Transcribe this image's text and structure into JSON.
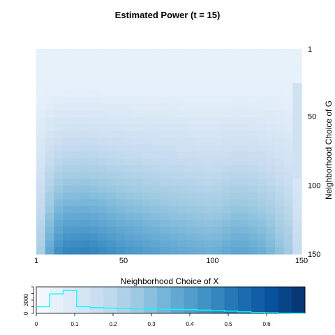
{
  "chart_data": [
    {
      "type": "heatmap",
      "title": "Estimated Power (t = 15)",
      "xlabel": "Neighborhood Choice of X",
      "ylabel": "Neighborhood Choice of G",
      "x_ticks": [
        "1",
        "50",
        "100",
        "150"
      ],
      "x_tick_values": [
        1,
        50,
        100,
        150
      ],
      "y_ticks": [
        "1",
        "50",
        "100",
        "150"
      ],
      "y_tick_values": [
        1,
        50,
        100,
        150
      ],
      "xlim": [
        1,
        150
      ],
      "ylim": [
        1,
        150
      ],
      "y_reversed": true,
      "colormap": "Blues",
      "colors": [
        "#f7fbff",
        "#deebf7",
        "#c6dbef",
        "#9ecae1",
        "#6baed6",
        "#4292c6",
        "#2171b5",
        "#08519c",
        "#08306b"
      ],
      "value_profile": {
        "x": [
          1,
          5,
          15,
          30,
          50,
          75,
          100,
          115,
          130,
          145,
          150
        ],
        "power_at_bottom": [
          0.18,
          0.45,
          0.68,
          0.7,
          0.62,
          0.55,
          0.5,
          0.56,
          0.5,
          0.35,
          0.15
        ],
        "y_start_rise": 25,
        "y_full": 150
      }
    },
    {
      "type": "line",
      "title": "",
      "xlabel": "",
      "ylabel": "",
      "x_ticks": [
        "0",
        "0.1",
        "0.2",
        "0.3",
        "0.4",
        "0.5",
        "0.6"
      ],
      "x_tick_values": [
        0,
        0.1,
        0.2,
        0.3,
        0.4,
        0.5,
        0.6
      ],
      "y_ticks": [
        "0",
        "3000"
      ],
      "y_tick_values": [
        0,
        3000
      ],
      "xlim": [
        0,
        0.7
      ],
      "ylim": [
        0,
        6000
      ],
      "line_color": "#00ffff",
      "color_bins": 20,
      "histogram_steps": [
        {
          "x0": 0.0,
          "x1": 0.035,
          "y": 1500
        },
        {
          "x0": 0.035,
          "x1": 0.07,
          "y": 4400
        },
        {
          "x0": 0.07,
          "x1": 0.105,
          "y": 5200
        },
        {
          "x0": 0.105,
          "x1": 0.14,
          "y": 1500
        },
        {
          "x0": 0.14,
          "x1": 0.175,
          "y": 1300
        },
        {
          "x0": 0.175,
          "x1": 0.21,
          "y": 1200
        },
        {
          "x0": 0.21,
          "x1": 0.245,
          "y": 1100
        },
        {
          "x0": 0.245,
          "x1": 0.28,
          "y": 1050
        },
        {
          "x0": 0.28,
          "x1": 0.315,
          "y": 1000
        },
        {
          "x0": 0.315,
          "x1": 0.35,
          "y": 950
        },
        {
          "x0": 0.35,
          "x1": 0.385,
          "y": 900
        },
        {
          "x0": 0.385,
          "x1": 0.42,
          "y": 850
        },
        {
          "x0": 0.42,
          "x1": 0.455,
          "y": 750
        },
        {
          "x0": 0.455,
          "x1": 0.49,
          "y": 650
        },
        {
          "x0": 0.49,
          "x1": 0.525,
          "y": 500
        },
        {
          "x0": 0.525,
          "x1": 0.56,
          "y": 350
        },
        {
          "x0": 0.56,
          "x1": 0.595,
          "y": 200
        },
        {
          "x0": 0.595,
          "x1": 0.63,
          "y": 120
        },
        {
          "x0": 0.63,
          "x1": 0.665,
          "y": 60
        },
        {
          "x0": 0.665,
          "x1": 0.7,
          "y": 30
        }
      ]
    }
  ]
}
